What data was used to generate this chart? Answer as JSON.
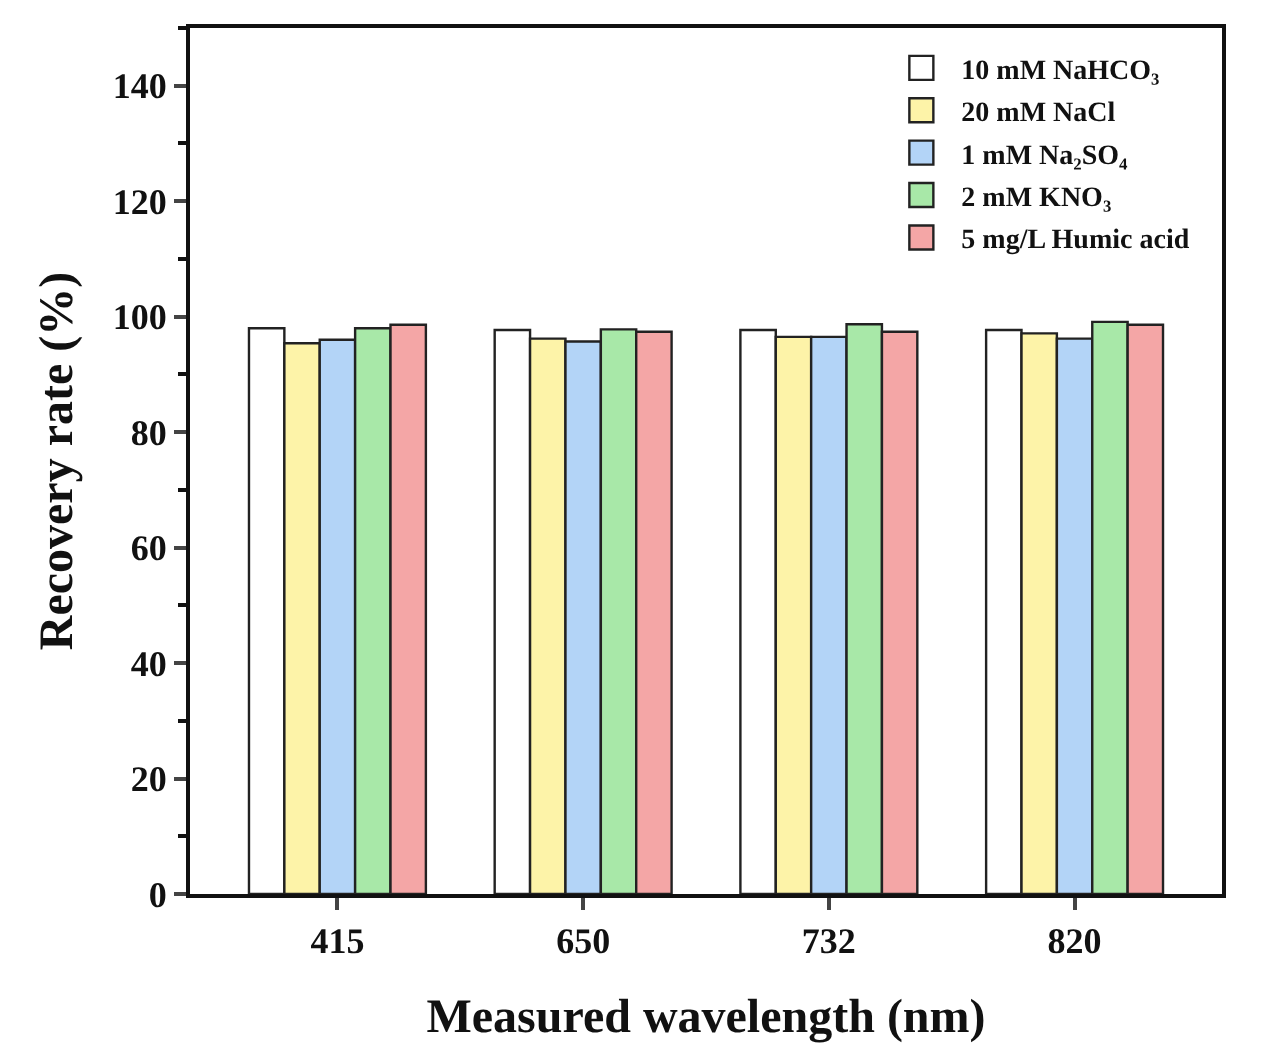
{
  "chart_data": {
    "type": "bar",
    "xlabel": "Measured wavelength (nm)",
    "ylabel": "Recovery rate (%)",
    "categories": [
      "415",
      "650",
      "732",
      "820"
    ],
    "series": [
      {
        "name": "10 mM NaHCO₃",
        "color": "#ffffff",
        "values": [
          98.0,
          97.7,
          97.7,
          97.7
        ]
      },
      {
        "name": "20 mM NaCl",
        "color": "#fdf3a8",
        "values": [
          95.4,
          96.2,
          96.5,
          97.1
        ]
      },
      {
        "name": "1 mM Na₂SO₄",
        "color": "#b3d4f7",
        "values": [
          96.0,
          95.7,
          96.5,
          96.2
        ]
      },
      {
        "name": "2 mM KNO₃",
        "color": "#a8e8a8",
        "values": [
          98.0,
          97.8,
          98.7,
          99.1
        ]
      },
      {
        "name": "5 mg/L Humic acid",
        "color": "#f4a6a6",
        "values": [
          98.6,
          97.4,
          97.4,
          98.6
        ]
      }
    ],
    "ylim": [
      0,
      150
    ],
    "yticks": [
      0,
      20,
      40,
      60,
      80,
      100,
      120,
      140
    ],
    "grid": false,
    "legend": "top right"
  }
}
